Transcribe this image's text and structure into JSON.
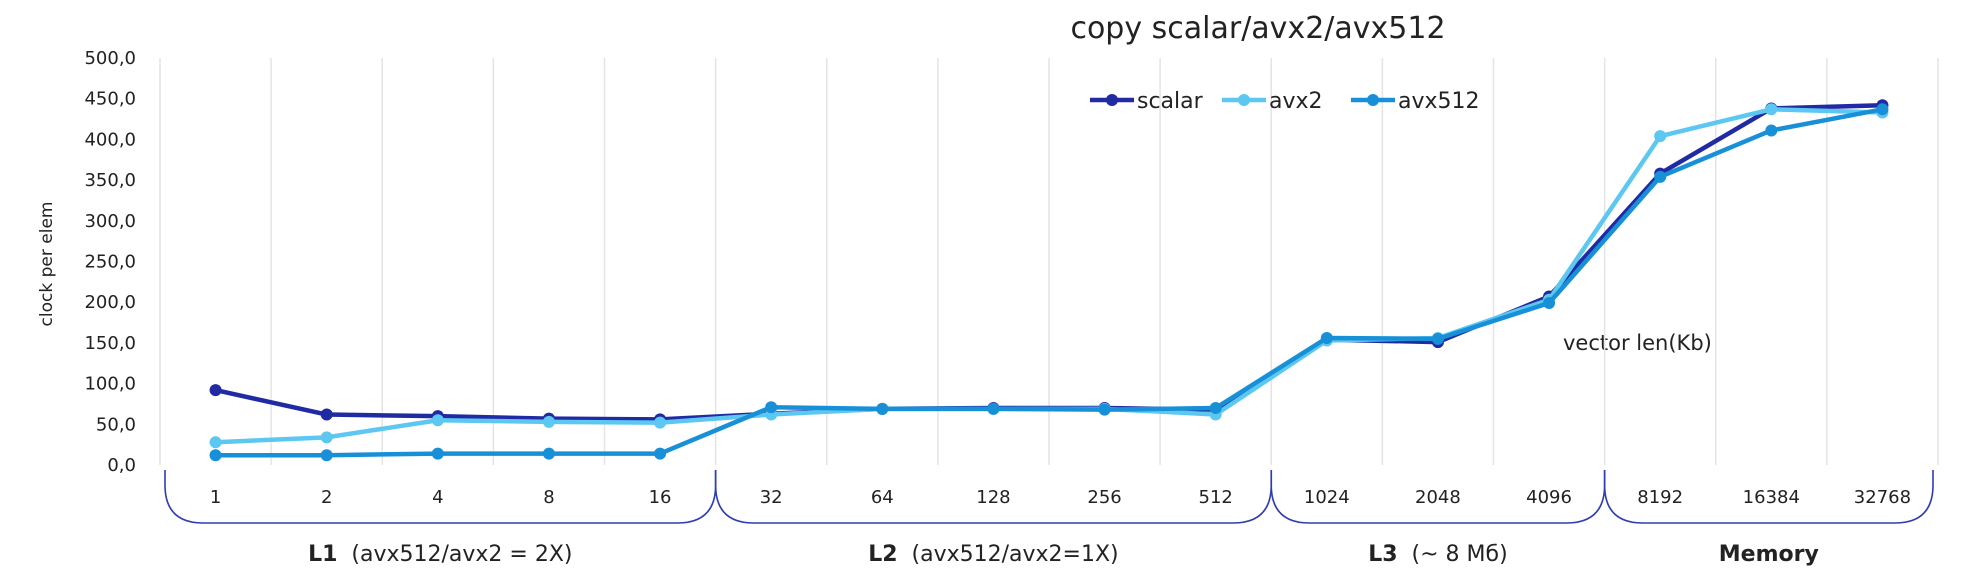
{
  "chart_data": {
    "type": "line",
    "title": "copy scalar/avx2/avx512",
    "ylabel": "clock per elem",
    "annotation": "vector len(Kb)",
    "ylim": [
      0,
      500
    ],
    "yticks": [
      "0,0",
      "50,0",
      "100,0",
      "150,0",
      "200,0",
      "250,0",
      "300,0",
      "350,0",
      "400,0",
      "450,0",
      "500,0"
    ],
    "categories": [
      "1",
      "2",
      "4",
      "8",
      "16",
      "32",
      "64",
      "128",
      "256",
      "512",
      "1024",
      "2048",
      "4096",
      "8192",
      "16384",
      "32768"
    ],
    "series": [
      {
        "name": "scalar",
        "color": "#1f2aa3",
        "values": [
          92,
          62,
          60,
          57,
          56,
          63,
          69,
          70,
          70,
          68,
          154,
          151,
          207,
          358,
          438,
          442
        ]
      },
      {
        "name": "avx2",
        "color": "#5cc8f2",
        "values": [
          28,
          34,
          55,
          53,
          52,
          62,
          69,
          69,
          69,
          62,
          153,
          156,
          203,
          404,
          437,
          433
        ]
      },
      {
        "name": "avx512",
        "color": "#1890d8",
        "values": [
          12,
          12,
          14,
          14,
          14,
          71,
          69,
          69,
          68,
          70,
          156,
          155,
          199,
          354,
          411,
          437
        ]
      }
    ],
    "grid": {
      "vertical": true,
      "horizontal": false
    },
    "legend_position": "top-center",
    "groups": [
      {
        "name": "L1",
        "rest": "(avx512/avx2 = 2X)",
        "first": 0,
        "last": 4
      },
      {
        "name": "L2",
        "rest": "(avx512/avx2=1X)",
        "first": 5,
        "last": 9
      },
      {
        "name": "L3",
        "rest": "(~ 8 Mб)",
        "first": 10,
        "last": 12
      },
      {
        "name": "Memory",
        "rest": "",
        "first": 13,
        "last": 15
      }
    ]
  }
}
